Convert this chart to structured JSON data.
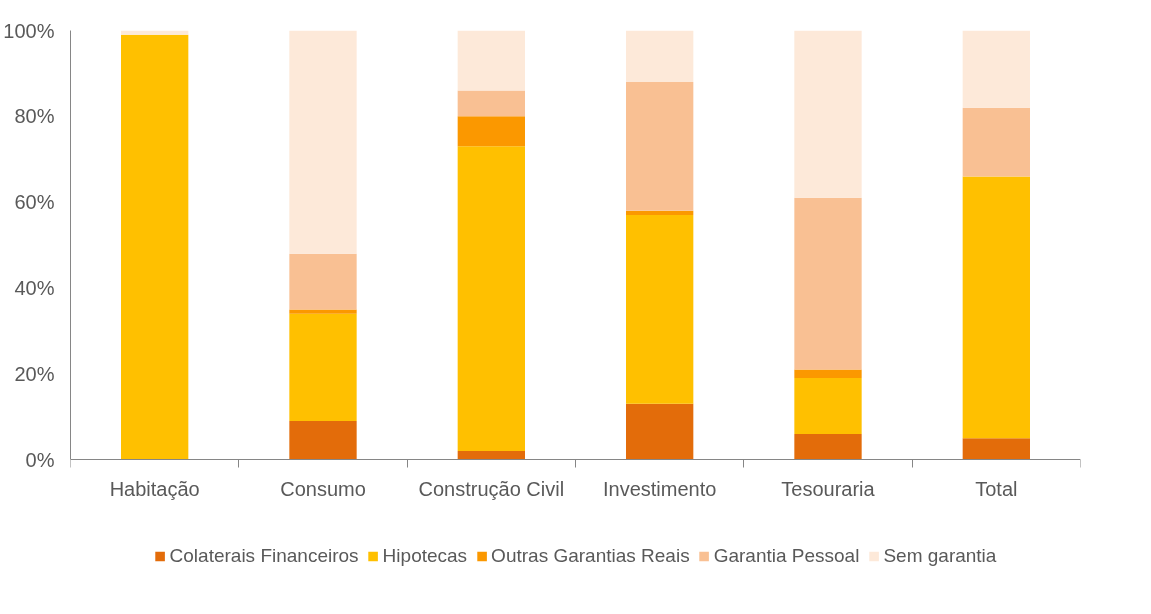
{
  "chart_data": {
    "type": "bar",
    "stacked": true,
    "categories": [
      "Habitação",
      "Consumo",
      "Construção Civil",
      "Investimento",
      "Tesouraria",
      "Total"
    ],
    "series": [
      {
        "name": "Colaterais Financeiros",
        "color": "#e36c0a",
        "values": [
          0,
          9,
          2,
          13,
          6,
          5
        ]
      },
      {
        "name": "Hipotecas",
        "color": "#ffc000",
        "values": [
          99,
          25,
          71,
          44,
          13,
          61
        ]
      },
      {
        "name": "Outras Garantias Reais",
        "color": "#fb9800",
        "values": [
          0,
          1,
          7,
          1,
          2,
          0
        ]
      },
      {
        "name": "Garantia Pessoal",
        "color": "#f9c093",
        "values": [
          0,
          13,
          6,
          30,
          40,
          16
        ]
      },
      {
        "name": "Sem garantia",
        "color": "#fde9d9",
        "values": [
          1,
          52,
          14,
          12,
          39,
          18
        ]
      }
    ],
    "ylim": [
      0,
      100
    ],
    "yticks": [
      {
        "value": 0,
        "label": "0%"
      },
      {
        "value": 20,
        "label": "20%"
      },
      {
        "value": 40,
        "label": "40%"
      },
      {
        "value": 60,
        "label": "60%"
      },
      {
        "value": 80,
        "label": "80%"
      },
      {
        "value": 100,
        "label": "100%"
      }
    ],
    "grid": false,
    "legend": "bottom"
  }
}
